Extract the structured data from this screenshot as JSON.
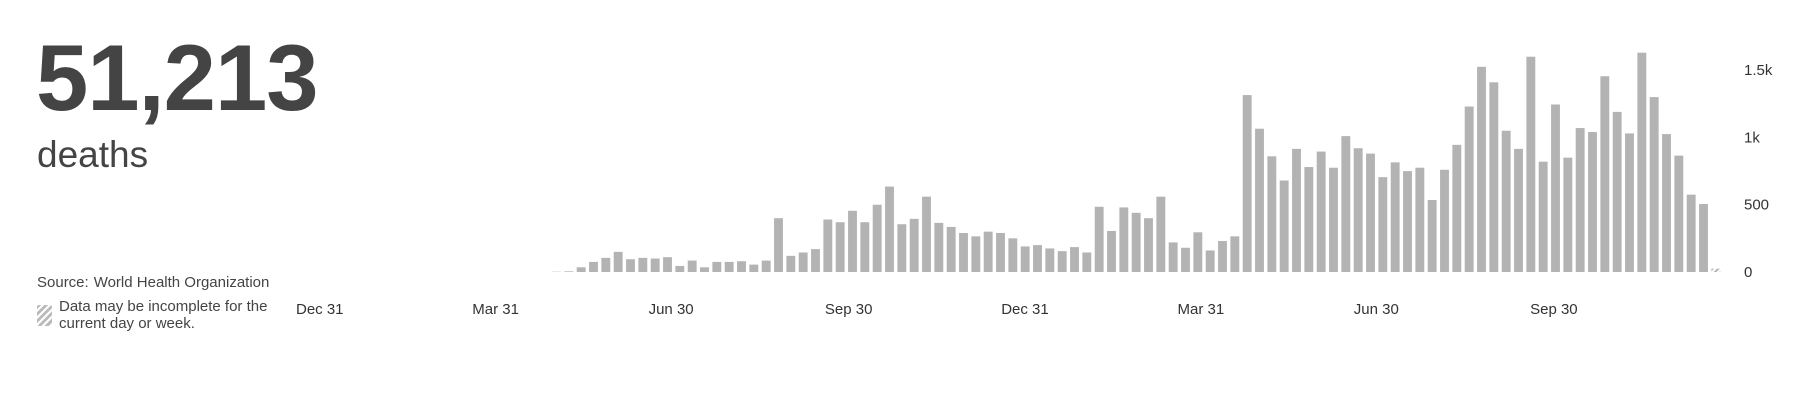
{
  "headline": {
    "total": "51,213",
    "metric": "deaths"
  },
  "source": {
    "label": "Source:",
    "value": "World Health Organization"
  },
  "note": "Data may be incomplete for the current day or week.",
  "colors": {
    "bar": "#b3b3b3",
    "text": "#444444"
  },
  "chart_data": {
    "type": "bar",
    "x_tick_labels": [
      "Dec 31",
      "Mar 31",
      "Jun 30",
      "Sep 30",
      "Dec 31",
      "Mar 31",
      "Jun 30",
      "Sep 30"
    ],
    "y_tick_labels": [
      "0",
      "500",
      "1k",
      "1.5k"
    ],
    "y_ticks": [
      0,
      500,
      1000,
      1500
    ],
    "ylim": [
      0,
      1650
    ],
    "y_axis_side": "right",
    "grid": false,
    "legend": "none",
    "bar_unit": "weekly deaths",
    "values": [
      0,
      0,
      0,
      0,
      0,
      0,
      0,
      0,
      0,
      0,
      0,
      0,
      0,
      2,
      5,
      35,
      75,
      105,
      150,
      95,
      105,
      100,
      110,
      45,
      85,
      35,
      75,
      75,
      80,
      55,
      85,
      400,
      120,
      145,
      170,
      390,
      370,
      455,
      370,
      500,
      635,
      355,
      395,
      560,
      365,
      335,
      290,
      265,
      300,
      290,
      250,
      190,
      200,
      175,
      155,
      185,
      145,
      485,
      305,
      480,
      440,
      400,
      560,
      220,
      180,
      295,
      160,
      230,
      265,
      1315,
      1065,
      860,
      680,
      915,
      780,
      895,
      775,
      1010,
      920,
      880,
      705,
      815,
      750,
      775,
      535,
      760,
      945,
      1230,
      1525,
      1410,
      1050,
      915,
      1600,
      820,
      1245,
      850,
      1070,
      1040,
      1455,
      1190,
      1030,
      1630,
      1300,
      1025,
      865,
      575,
      505,
      25
    ],
    "incomplete_last_period": true
  }
}
